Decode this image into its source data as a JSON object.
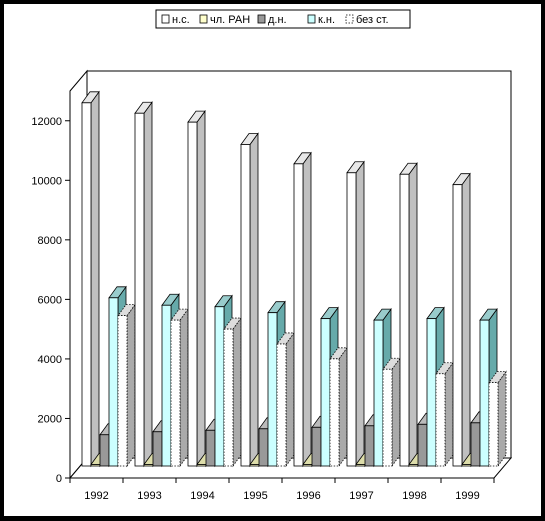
{
  "chart_data": {
    "type": "bar",
    "style": "3d-clustered-columns",
    "title": "",
    "xlabel": "",
    "ylabel": "",
    "ylim": [
      0,
      13000
    ],
    "yticks": [
      0,
      2000,
      4000,
      6000,
      8000,
      10000,
      12000
    ],
    "grid": false,
    "legend_position": "top",
    "categories": [
      "1992",
      "1993",
      "1994",
      "1995",
      "1996",
      "1997",
      "1998",
      "1999"
    ],
    "series": [
      {
        "name": "н.с.",
        "values": [
          12200,
          11850,
          11550,
          10800,
          10150,
          9850,
          9800,
          9450
        ],
        "color": "#ffffff",
        "side": "#c0c0c0",
        "top": "#e8e8e8"
      },
      {
        "name": "чл. РАН",
        "values": [
          50,
          50,
          50,
          50,
          50,
          50,
          50,
          50
        ],
        "color": "#ffffcc",
        "side": "#b0b080",
        "top": "#ddddaa"
      },
      {
        "name": "д.н.",
        "values": [
          1050,
          1150,
          1200,
          1250,
          1300,
          1350,
          1400,
          1450
        ],
        "color": "#999999",
        "side": "#666666",
        "top": "#bbbbbb"
      },
      {
        "name": "к.н.",
        "values": [
          5650,
          5400,
          5350,
          5150,
          4950,
          4900,
          4950,
          4900
        ],
        "color": "#ccffff",
        "side": "#66aaaa",
        "top": "#99cccc"
      },
      {
        "name": "без ст.",
        "values": [
          5050,
          4900,
          4600,
          4100,
          3600,
          3250,
          3100,
          2800
        ],
        "color": "#ffffff",
        "side": "#aaaaaa",
        "top": "#dddddd",
        "dotted": true
      }
    ]
  }
}
